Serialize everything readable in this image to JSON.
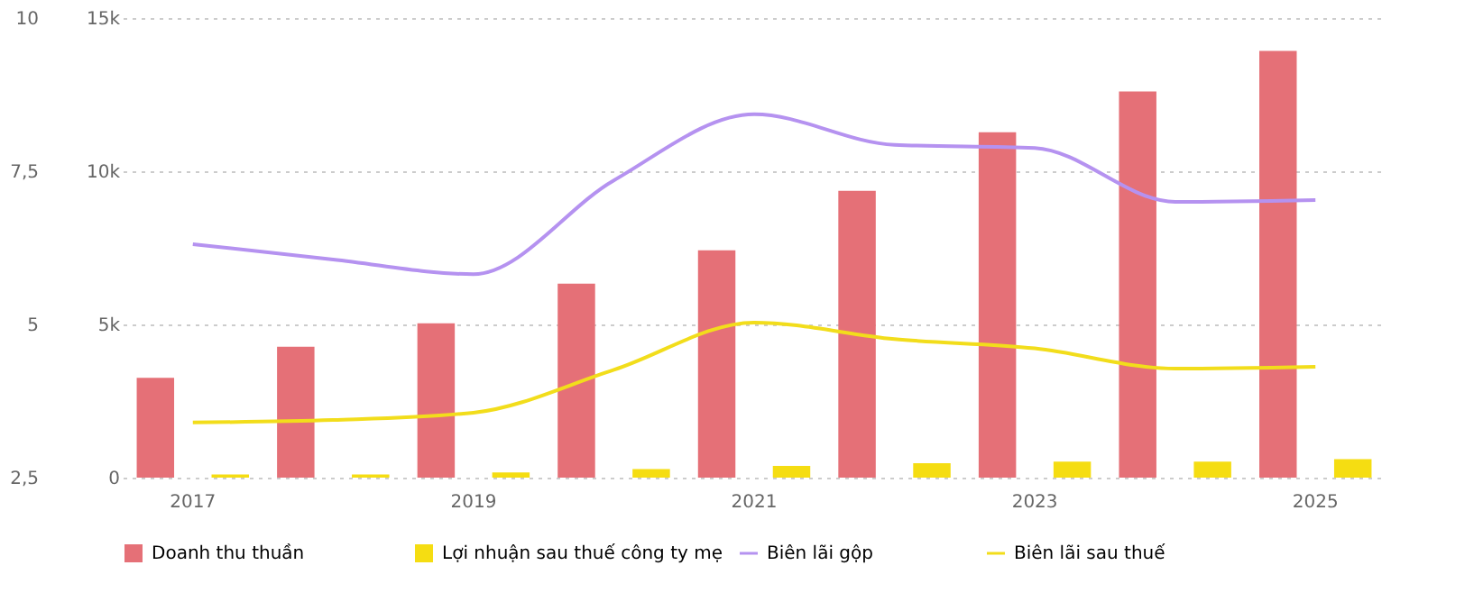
{
  "chart_data": {
    "type": "bar",
    "categories": [
      "2017",
      null,
      "2019",
      null,
      "2021",
      null,
      "2023",
      null,
      "2025"
    ],
    "series": [
      {
        "name": "Doanh thu thuần",
        "color": "#e57077",
        "values": [
          3260,
          4270,
          5040,
          6330,
          7420,
          9360,
          11270,
          12600,
          13930
        ]
      },
      {
        "name": "Lợi nhuận sau thuế công ty mẹ",
        "color": "#f5dd12",
        "values": [
          100,
          100,
          170,
          280,
          380,
          470,
          520,
          520,
          600
        ]
      },
      {
        "name": "Biên lãi gộp",
        "type": "line",
        "axis": "y2",
        "color": "#b592f0",
        "values": [
          6.31,
          6.06,
          5.82,
          7.35,
          8.43,
          7.93,
          7.88,
          7.0,
          7.03
        ]
      },
      {
        "name": "Biên lãi sau thuế",
        "type": "line",
        "axis": "y2",
        "color": "#f2dd1b",
        "values": [
          3.4,
          3.44,
          3.56,
          4.26,
          5.03,
          4.76,
          4.61,
          4.28,
          4.31
        ]
      }
    ],
    "ylim": [
      0,
      15000
    ],
    "yticks": [
      {
        "value": 0,
        "label": "0"
      },
      {
        "value": 5000,
        "label": "5k"
      },
      {
        "value": 10000,
        "label": "10k"
      },
      {
        "value": 15000,
        "label": "15k"
      }
    ],
    "y2lim": [
      2.5,
      10
    ],
    "y2ticks": [
      {
        "value": 2.5,
        "label": "2,5"
      },
      {
        "value": 5,
        "label": "5"
      },
      {
        "value": 7.5,
        "label": "7,5"
      },
      {
        "value": 10,
        "label": "10"
      }
    ],
    "grid": "y",
    "legend": "bottom",
    "marker": "none",
    "line_style": "solid"
  }
}
